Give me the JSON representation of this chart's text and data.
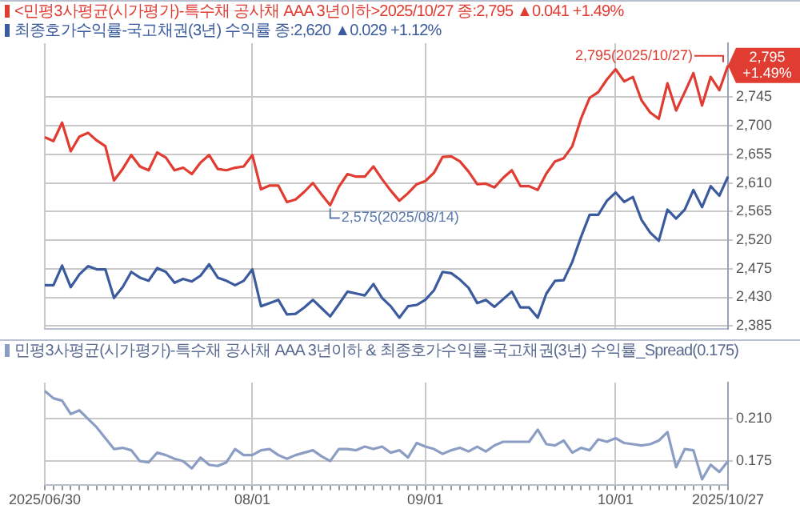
{
  "chart_data": [
    {
      "type": "line",
      "legend": "top left",
      "grid": true,
      "tick_labels": "y",
      "categories": [
        null,
        null,
        null,
        null,
        null,
        null,
        null,
        null,
        null,
        null,
        null,
        null,
        null,
        null,
        null,
        null,
        null,
        null,
        null,
        null,
        null,
        null,
        null,
        null,
        null,
        null,
        null,
        null,
        null,
        null,
        null,
        null,
        null,
        null,
        null,
        null,
        null,
        null,
        null,
        null,
        null,
        null,
        null,
        null,
        null,
        null,
        null,
        null,
        null,
        null,
        null,
        null,
        null,
        null,
        null,
        null,
        null,
        null,
        null,
        null,
        null,
        null,
        null,
        null,
        null,
        null,
        null,
        null,
        null,
        null,
        null,
        null,
        null,
        null,
        null,
        null,
        null,
        null,
        null,
        null
      ],
      "ylim": [
        2380,
        2830
      ],
      "yticks": [
        {
          "value": 2385,
          "label": "2,385"
        },
        {
          "value": 2430,
          "label": "2,430"
        },
        {
          "value": 2475,
          "label": "2,475"
        },
        {
          "value": 2520,
          "label": "2,520"
        },
        {
          "value": 2565,
          "label": "2,565"
        },
        {
          "value": 2610,
          "label": "2,610"
        },
        {
          "value": 2655,
          "label": "2,655"
        },
        {
          "value": 2700,
          "label": "2,700"
        },
        {
          "value": 2745,
          "label": "2,745"
        }
      ],
      "series": [
        {
          "name": "<민평3사평균(시가평가)-특수채 공사채 AAA 3년이하>2025/10/27 종:2,795 ▲0.041 +1.49%",
          "color": "#e03c31",
          "values": [
            2682,
            2676,
            2705,
            2660,
            2683,
            2689,
            2677,
            2668,
            2614,
            2632,
            2654,
            2636,
            2630,
            2658,
            2650,
            2630,
            2634,
            2624,
            2642,
            2654,
            2632,
            2630,
            2634,
            2636,
            2654,
            2600,
            2606,
            2606,
            2580,
            2584,
            2596,
            2610,
            2592,
            2575,
            2604,
            2624,
            2620,
            2620,
            2636,
            2616,
            2598,
            2582,
            2594,
            2608,
            2613,
            2626,
            2651,
            2652,
            2644,
            2628,
            2608,
            2609,
            2603,
            2618,
            2630,
            2605,
            2605,
            2599,
            2625,
            2644,
            2649,
            2668,
            2711,
            2744,
            2753,
            2773,
            2789,
            2770,
            2777,
            2740,
            2721,
            2711,
            2767,
            2724,
            2753,
            2783,
            2732,
            2777,
            2756,
            2795
          ]
        },
        {
          "name": "최종호가수익률-국고채권(3년) 수익률 종:2,620 ▲0.029 +1.12%",
          "color": "#3b5b9e",
          "values": [
            2449,
            2449,
            2480,
            2446,
            2466,
            2479,
            2474,
            2474,
            2429,
            2446,
            2470,
            2461,
            2456,
            2476,
            2470,
            2453,
            2459,
            2455,
            2464,
            2482,
            2461,
            2456,
            2449,
            2456,
            2474,
            2416,
            2421,
            2426,
            2403,
            2404,
            2414,
            2426,
            2413,
            2400,
            2419,
            2439,
            2436,
            2433,
            2451,
            2429,
            2416,
            2398,
            2416,
            2418,
            2426,
            2441,
            2470,
            2468,
            2458,
            2445,
            2421,
            2426,
            2415,
            2427,
            2439,
            2414,
            2414,
            2398,
            2436,
            2456,
            2457,
            2486,
            2525,
            2560,
            2560,
            2582,
            2595,
            2580,
            2588,
            2552,
            2532,
            2519,
            2568,
            2554,
            2568,
            2599,
            2572,
            2605,
            2590,
            2620
          ]
        }
      ],
      "annotations": [
        "2,795(2025/10/27)",
        {
          "text": "2,575(2025/08/14)",
          "y": 2575
        },
        "2,795\n+1.49%"
      ]
    },
    {
      "type": "line",
      "legend": "top left",
      "grid": true,
      "categories": [
        "2025/06/30",
        null,
        null,
        null,
        null,
        null,
        null,
        null,
        null,
        null,
        null,
        null,
        null,
        null,
        null,
        null,
        null,
        null,
        null,
        null,
        null,
        null,
        null,
        null,
        "08/01",
        null,
        null,
        null,
        null,
        null,
        null,
        null,
        null,
        null,
        null,
        null,
        null,
        null,
        null,
        null,
        null,
        null,
        null,
        null,
        "09/01",
        null,
        null,
        null,
        null,
        null,
        null,
        null,
        null,
        null,
        null,
        null,
        null,
        null,
        null,
        null,
        null,
        null,
        null,
        null,
        null,
        null,
        "10/01",
        null,
        null,
        null,
        null,
        null,
        null,
        null,
        null,
        null,
        null,
        null,
        null,
        "2025/10/27"
      ],
      "ylim": [
        0.155,
        0.24
      ],
      "yticks": [
        {
          "value": 0.175,
          "label": "0.175"
        },
        {
          "value": 0.21,
          "label": "0.210"
        }
      ],
      "series": [
        {
          "name": "민평3사평균(시가평가)-특수채 공사채 AAA 3년이하 & 최종호가수익률-국고채권(3년) 수익률_Spread(0.175)",
          "color": "#8c9dc4",
          "values": [
            0.233,
            0.227,
            0.225,
            0.214,
            0.217,
            0.21,
            0.203,
            0.194,
            0.185,
            0.186,
            0.184,
            0.175,
            0.174,
            0.182,
            0.18,
            0.177,
            0.175,
            0.169,
            0.178,
            0.172,
            0.171,
            0.174,
            0.185,
            0.18,
            0.18,
            0.184,
            0.185,
            0.18,
            0.177,
            0.18,
            0.182,
            0.184,
            0.179,
            0.175,
            0.185,
            0.185,
            0.184,
            0.187,
            0.185,
            0.187,
            0.182,
            0.184,
            0.178,
            0.19,
            0.187,
            0.185,
            0.181,
            0.184,
            0.186,
            0.183,
            0.187,
            0.183,
            0.188,
            0.191,
            0.191,
            0.191,
            0.191,
            0.201,
            0.189,
            0.188,
            0.192,
            0.182,
            0.186,
            0.184,
            0.193,
            0.191,
            0.194,
            0.19,
            0.189,
            0.188,
            0.189,
            0.192,
            0.199,
            0.17,
            0.185,
            0.184,
            0.16,
            0.172,
            0.166,
            0.175
          ]
        }
      ]
    }
  ]
}
